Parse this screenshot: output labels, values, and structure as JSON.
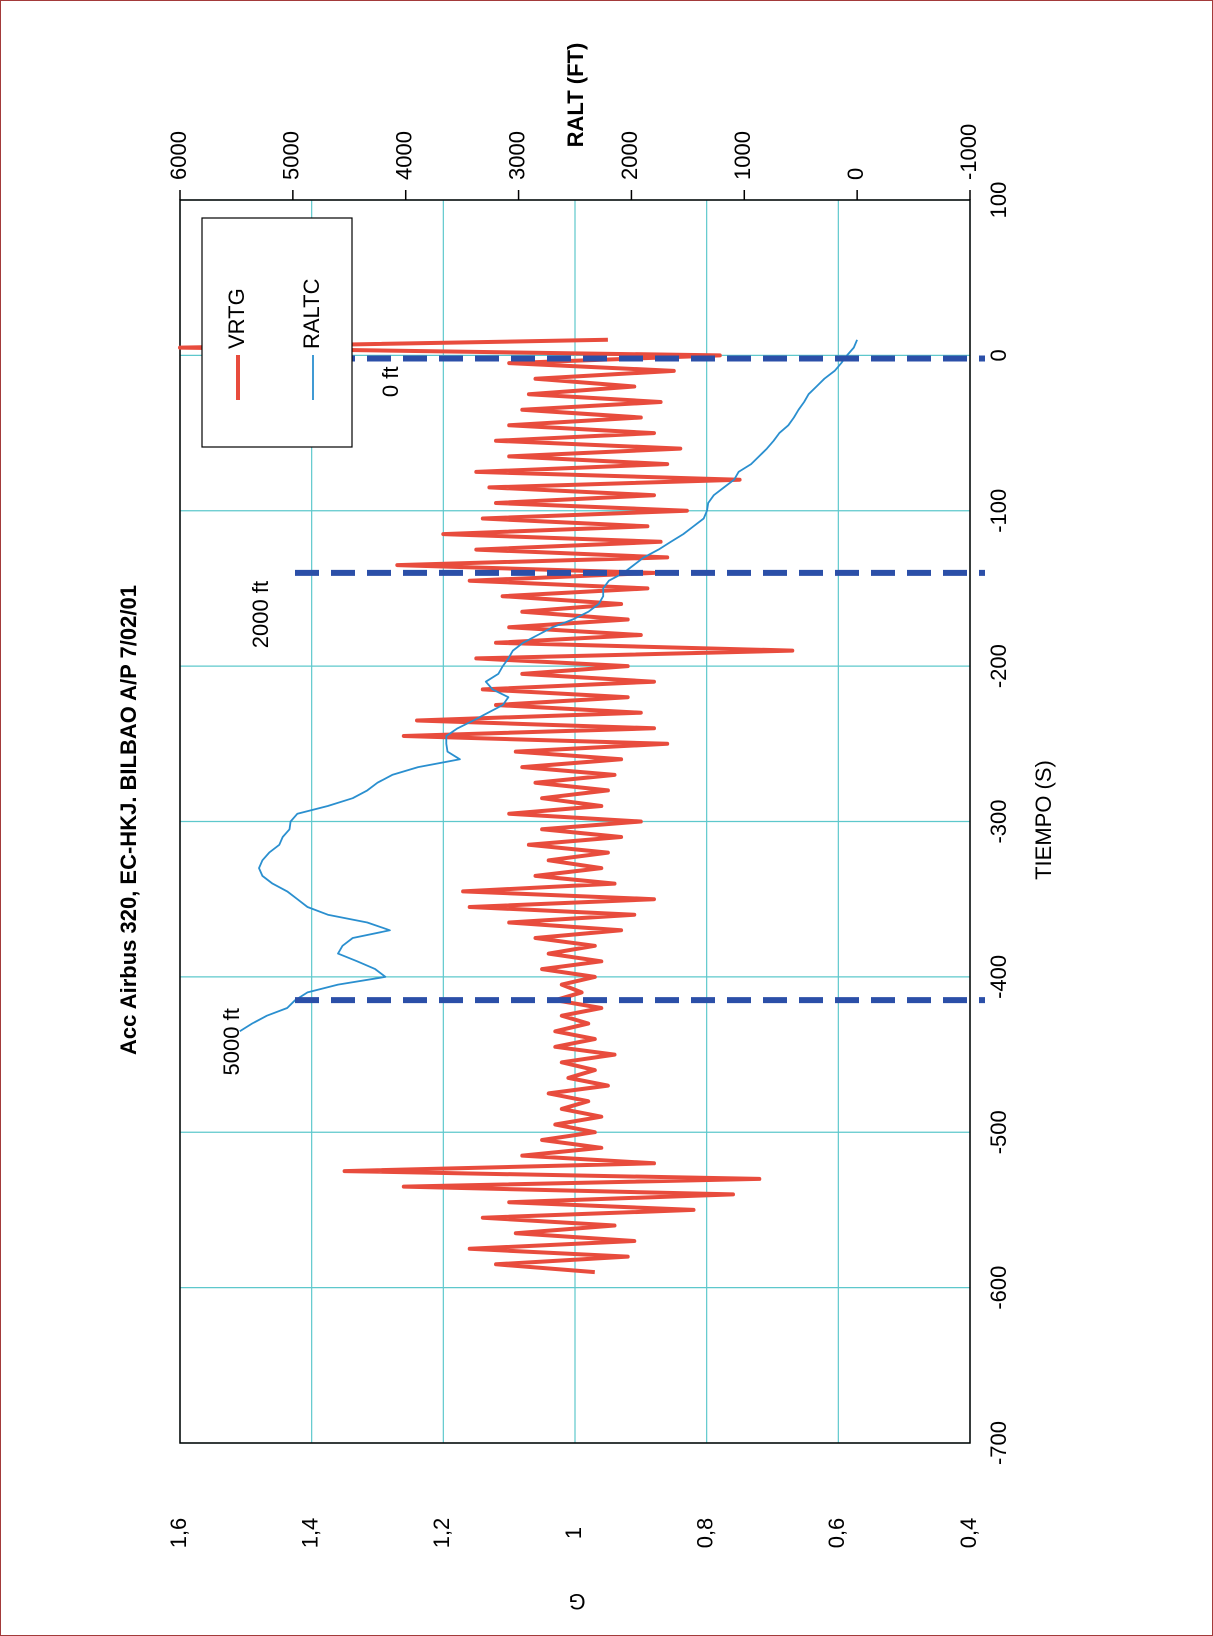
{
  "chart_data": {
    "type": "line",
    "title": "Acc Airbus 320, EC-HKJ.  BILBAO A/P 7/02/01",
    "x_label": "TIEMPO (S)",
    "y_label": "G",
    "y2_label": "RALT (FT)",
    "x": [
      -590,
      -585,
      -580,
      -575,
      -570,
      -565,
      -560,
      -555,
      -550,
      -545,
      -540,
      -535,
      -530,
      -525,
      -520,
      -515,
      -510,
      -505,
      -500,
      -495,
      -490,
      -485,
      -480,
      -475,
      -470,
      -465,
      -460,
      -455,
      -450,
      -445,
      -440,
      -435,
      -430,
      -425,
      -420,
      -415,
      -410,
      -405,
      -400,
      -395,
      -390,
      -385,
      -380,
      -375,
      -370,
      -365,
      -360,
      -355,
      -350,
      -345,
      -340,
      -335,
      -330,
      -325,
      -320,
      -315,
      -310,
      -305,
      -300,
      -295,
      -290,
      -285,
      -280,
      -275,
      -270,
      -265,
      -260,
      -255,
      -250,
      -245,
      -240,
      -235,
      -230,
      -225,
      -220,
      -215,
      -210,
      -205,
      -200,
      -195,
      -190,
      -185,
      -180,
      -175,
      -170,
      -165,
      -160,
      -155,
      -150,
      -145,
      -140,
      -135,
      -130,
      -125,
      -120,
      -115,
      -110,
      -105,
      -100,
      -95,
      -90,
      -85,
      -80,
      -75,
      -70,
      -65,
      -60,
      -55,
      -50,
      -45,
      -40,
      -35,
      -30,
      -25,
      -20,
      -15,
      -10,
      -5,
      0,
      5,
      10
    ],
    "series": [
      {
        "name": "VRTG",
        "color": "#e84c3d",
        "values": [
          0.97,
          1.12,
          0.92,
          1.16,
          0.91,
          1.09,
          0.94,
          1.14,
          0.82,
          1.1,
          0.76,
          1.26,
          0.72,
          1.35,
          0.88,
          1.08,
          0.96,
          1.05,
          0.97,
          1.03,
          0.96,
          1.02,
          0.98,
          1.04,
          0.95,
          1.01,
          0.97,
          1.02,
          0.94,
          1.03,
          0.97,
          1.03,
          0.98,
          1.02,
          0.96,
          1.03,
          0.99,
          1.02,
          0.97,
          1.05,
          0.96,
          1.04,
          0.97,
          1.06,
          0.93,
          1.1,
          0.91,
          1.16,
          0.88,
          1.17,
          0.94,
          1.06,
          0.96,
          1.04,
          0.95,
          1.07,
          0.93,
          1.05,
          0.9,
          1.1,
          0.96,
          1.05,
          0.95,
          1.06,
          0.94,
          1.08,
          0.93,
          1.09,
          0.86,
          1.26,
          0.88,
          1.24,
          0.9,
          1.12,
          0.92,
          1.14,
          0.88,
          1.08,
          0.92,
          1.15,
          0.67,
          1.12,
          0.9,
          1.1,
          0.92,
          1.08,
          0.93,
          1.11,
          0.89,
          1.16,
          0.88,
          1.27,
          0.86,
          1.15,
          0.87,
          1.2,
          0.89,
          1.14,
          0.83,
          1.12,
          0.88,
          1.13,
          0.75,
          1.15,
          0.86,
          1.1,
          0.84,
          1.12,
          0.88,
          1.1,
          0.9,
          1.08,
          0.87,
          1.07,
          0.91,
          1.06,
          0.85,
          1.1,
          0.78,
          1.6,
          0.95
        ]
      },
      {
        "name": "RALTC",
        "color": "#2a8fcf",
        "axis": "y2",
        "values": [
          null,
          null,
          null,
          null,
          null,
          null,
          null,
          null,
          null,
          null,
          null,
          null,
          null,
          null,
          null,
          null,
          null,
          null,
          null,
          null,
          null,
          null,
          null,
          null,
          null,
          null,
          null,
          null,
          null,
          null,
          null,
          5470,
          5360,
          5230,
          5050,
          4980,
          4870,
          4600,
          4180,
          4270,
          4430,
          4600,
          4560,
          4470,
          4140,
          4340,
          4690,
          4870,
          4960,
          5050,
          5180,
          5270,
          5300,
          5270,
          5210,
          5120,
          5090,
          5030,
          5020,
          4960,
          4690,
          4470,
          4340,
          4250,
          4120,
          3890,
          3520,
          3630,
          3640,
          3640,
          3540,
          3400,
          3270,
          3140,
          3090,
          3230,
          3290,
          3180,
          3140,
          3090,
          3050,
          2960,
          2830,
          2700,
          2520,
          2380,
          2290,
          2250,
          2250,
          2200,
          2070,
          1980,
          1890,
          1760,
          1650,
          1540,
          1450,
          1360,
          1330,
          1320,
          1270,
          1180,
          1090,
          1050,
          940,
          870,
          800,
          740,
          690,
          610,
          560,
          520,
          470,
          430,
          360,
          290,
          200,
          140,
          90,
          30,
          0
        ]
      }
    ],
    "markers": [
      {
        "x": -415,
        "label": "5000 ft"
      },
      {
        "x": -140,
        "label": "2000 ft"
      },
      {
        "x": -2,
        "label": "0 ft"
      }
    ],
    "marker_color": "#2b4fa8",
    "xlim": [
      -700,
      100
    ],
    "xticks": [
      -700,
      -600,
      -500,
      -400,
      -300,
      -200,
      -100,
      0,
      100
    ],
    "ylim": [
      0.4,
      1.6
    ],
    "yticks": [
      {
        "value": 0.4,
        "label": "0,4"
      },
      {
        "value": 0.6,
        "label": "0,6"
      },
      {
        "value": 0.8,
        "label": "0,8"
      },
      1,
      {
        "value": 1.2,
        "label": "1,2"
      },
      {
        "value": 1.4,
        "label": "1,4"
      },
      {
        "value": 1.6,
        "label": "1,6"
      }
    ],
    "y2lim": [
      -1000,
      6000
    ],
    "y2ticks": [
      -1000,
      0,
      1000,
      2000,
      3000,
      4000,
      5000,
      6000
    ],
    "grid": true,
    "legend": "upper right"
  }
}
